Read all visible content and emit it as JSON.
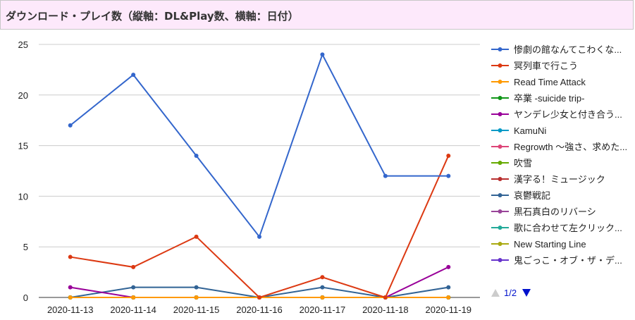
{
  "header": {
    "title": "ダウンロード・プレイ数（縦軸：DL&Play数、横軸：日付）"
  },
  "chart_data": {
    "type": "line",
    "title": "ダウンロード・プレイ数（縦軸：DL&Play数、横軸：日付）",
    "xlabel": "",
    "ylabel": "",
    "categories": [
      "2020-11-13",
      "2020-11-14",
      "2020-11-15",
      "2020-11-16",
      "2020-11-17",
      "2020-11-18",
      "2020-11-19"
    ],
    "ylim": [
      0,
      25
    ],
    "yticks": [
      0,
      5,
      10,
      15,
      20,
      25
    ],
    "grid": true,
    "legend_position": "right",
    "series": [
      {
        "name": "惨劇の館なんてこわくな...",
        "color": "#3366cc",
        "values": [
          17,
          22,
          14,
          6,
          24,
          12,
          12
        ]
      },
      {
        "name": "冥列車で行こう",
        "color": "#dc3912",
        "values": [
          4,
          3,
          6,
          0,
          2,
          0,
          14
        ]
      },
      {
        "name": "Read Time Attack",
        "color": "#ff9900",
        "values": [
          0,
          0,
          0,
          0,
          0,
          0,
          0
        ]
      },
      {
        "name": "卒業 -suicide trip-",
        "color": "#109618",
        "values": [
          0,
          0,
          0,
          0,
          0,
          0,
          0
        ]
      },
      {
        "name": "ヤンデレ少女と付き合う...",
        "color": "#990099",
        "values": [
          1,
          0,
          0,
          0,
          0,
          0,
          3
        ]
      },
      {
        "name": "KamuNi",
        "color": "#0099c6",
        "values": [
          0,
          0,
          0,
          0,
          0,
          0,
          0
        ]
      },
      {
        "name": "Regrowth 〜強さ、求めた...",
        "color": "#dd4477",
        "values": [
          0,
          0,
          0,
          0,
          0,
          0,
          0
        ]
      },
      {
        "name": "吹雪",
        "color": "#66aa00",
        "values": [
          0,
          0,
          0,
          0,
          0,
          0,
          0
        ]
      },
      {
        "name": "漢字る！ミュージック",
        "color": "#b82e2e",
        "values": [
          0,
          0,
          0,
          0,
          0,
          0,
          0
        ]
      },
      {
        "name": "哀鬱戦記",
        "color": "#316395",
        "values": [
          0,
          1,
          1,
          0,
          1,
          0,
          1
        ]
      },
      {
        "name": "黒石真白のリバーシ",
        "color": "#994499",
        "values": [
          0,
          0,
          0,
          0,
          0,
          0,
          0
        ]
      },
      {
        "name": "歌に合わせて左クリック...",
        "color": "#22aa99",
        "values": [
          0,
          0,
          0,
          0,
          0,
          0,
          0
        ]
      },
      {
        "name": "New Starting Line",
        "color": "#aaaa11",
        "values": [
          0,
          0,
          0,
          0,
          0,
          0,
          0
        ]
      },
      {
        "name": "鬼ごっこ・オブ・ザ・デ...",
        "color": "#6633cc",
        "values": [
          0,
          0,
          0,
          0,
          0,
          0,
          0
        ]
      }
    ]
  },
  "pager": {
    "text": "1/2",
    "prev_color": "#cccccc",
    "next_color": "#0011cc"
  },
  "colors": {
    "header_bg": "#fde9fb",
    "grid": "#cccccc",
    "baseline": "#333333"
  }
}
